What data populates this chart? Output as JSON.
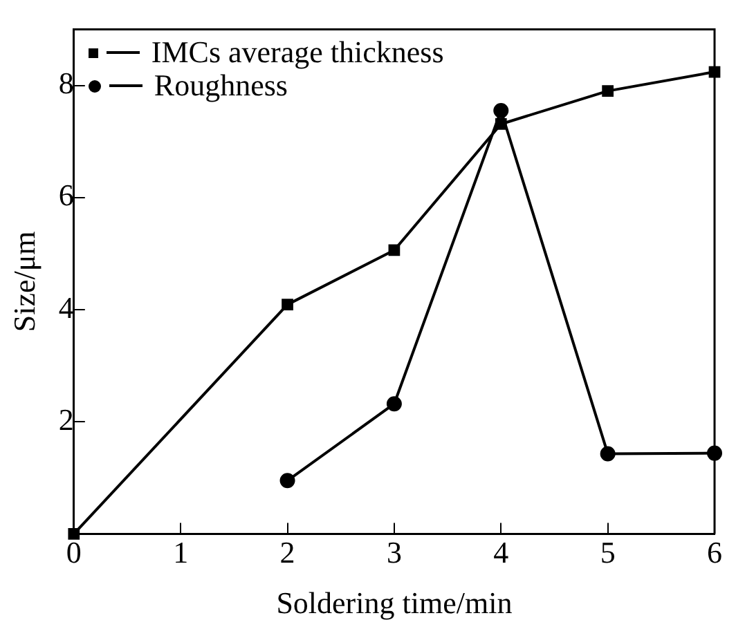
{
  "chart_data": {
    "type": "line",
    "xlabel": "Soldering time/min",
    "ylabel": "Size/μm",
    "x": [
      0,
      2,
      3,
      4,
      5,
      6
    ],
    "series": [
      {
        "name": "IMCs average thickness",
        "color": "#000000",
        "marker": "square",
        "values": [
          0,
          4.09,
          5.06,
          7.31,
          7.9,
          8.24
        ]
      },
      {
        "name": "Roughness",
        "color": "#000000",
        "marker": "circle",
        "values": [
          null,
          0.95,
          2.32,
          7.55,
          1.43,
          1.44
        ]
      }
    ],
    "xlim": [
      0,
      6
    ],
    "xticks": [
      0,
      1,
      2,
      3,
      4,
      5,
      6
    ],
    "ylim": [
      0,
      9
    ],
    "yticks": [
      {
        "value": 0,
        "label": null
      },
      2,
      4,
      6,
      8
    ],
    "grid": false,
    "legend": "top left",
    "line_style": "solid"
  }
}
